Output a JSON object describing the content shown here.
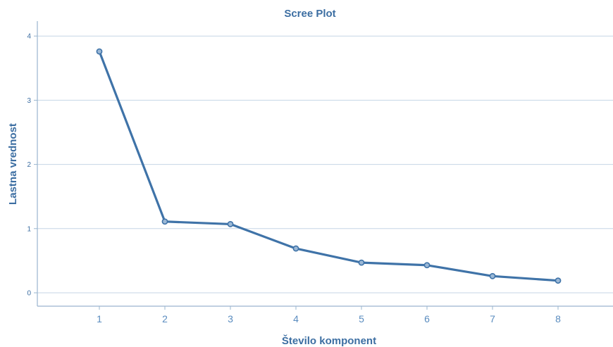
{
  "chart_data": {
    "type": "line",
    "title": "Scree Plot",
    "xlabel": "Število komponent",
    "ylabel": "Lastna vrednost",
    "x": [
      1,
      2,
      3,
      4,
      5,
      6,
      7,
      8
    ],
    "xtick_labels": [
      "1",
      "2",
      "3",
      "4",
      "5",
      "6",
      "7",
      "8"
    ],
    "yticks": [
      0,
      1,
      2,
      3,
      4
    ],
    "ytick_labels": [
      "0",
      "1",
      "2",
      "3",
      "4"
    ],
    "ylim": [
      -0.2,
      4.2
    ],
    "xlim": [
      0,
      8.8
    ],
    "grid": "horizontal",
    "series": [
      {
        "values": [
          3.76,
          1.11,
          1.07,
          0.69,
          0.47,
          0.43,
          0.26,
          0.19
        ],
        "color": "#3f73a8"
      }
    ]
  }
}
